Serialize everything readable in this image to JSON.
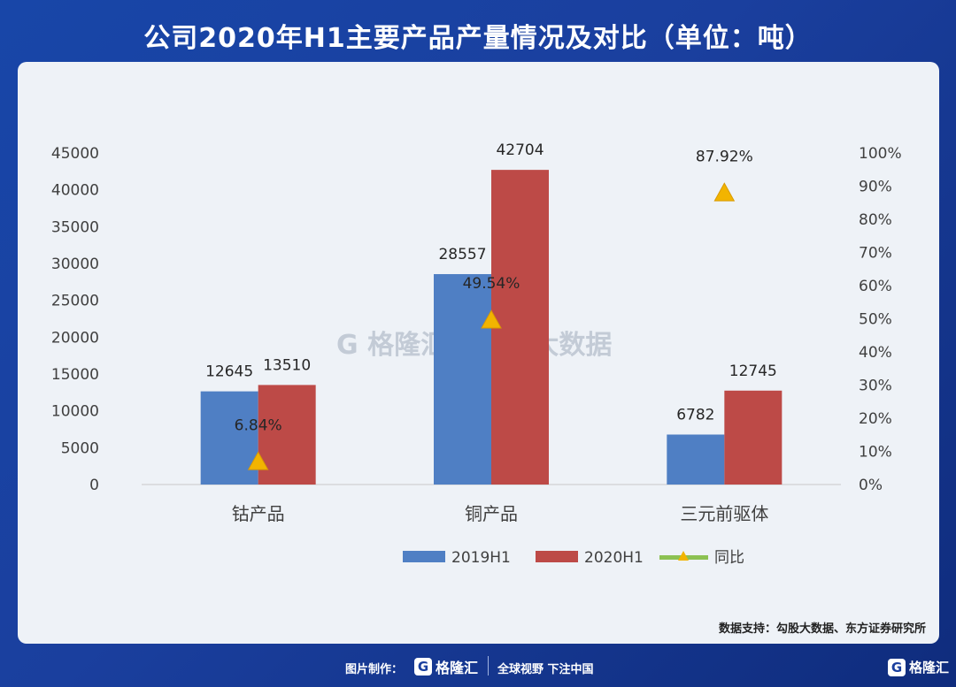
{
  "title": "公司2020年H1主要产品产量情况及对比（单位：吨）",
  "colors": {
    "background": "#1a3f9e",
    "series_2019": "#4f7fc4",
    "series_2020": "#bd4a47",
    "yoy_marker": "#f2b400",
    "yoy_line": "#8cc152"
  },
  "chart_data": {
    "type": "bar",
    "categories": [
      "钴产品",
      "铜产品",
      "三元前驱体"
    ],
    "series": [
      {
        "name": "2019H1",
        "values": [
          12645,
          28557,
          6782
        ]
      },
      {
        "name": "2020H1",
        "values": [
          13510,
          42704,
          12745
        ]
      }
    ],
    "secondary_series": {
      "name": "同比",
      "type": "scatter",
      "values": [
        6.84,
        49.54,
        87.92
      ],
      "labels": [
        "6.84%",
        "49.54%",
        "87.92%"
      ]
    },
    "ylim": [
      0,
      45000
    ],
    "y_ticks": [
      "0",
      "5000",
      "10000",
      "15000",
      "20000",
      "25000",
      "30000",
      "35000",
      "40000",
      "45000"
    ],
    "y2lim": [
      0,
      100
    ],
    "y2_ticks": [
      "0%",
      "10%",
      "20%",
      "30%",
      "40%",
      "50%",
      "60%",
      "70%",
      "80%",
      "90%",
      "100%"
    ],
    "grid": false,
    "legend_position": "bottom"
  },
  "watermark": {
    "brand": "格隆汇",
    "text": "勾股大数据"
  },
  "source": "数据支持：勾股大数据、东方证券研究所",
  "footer": {
    "label": "图片制作：",
    "brand": "格隆汇",
    "slogan": "全球视野 下注中国",
    "logo_letter": "G"
  }
}
